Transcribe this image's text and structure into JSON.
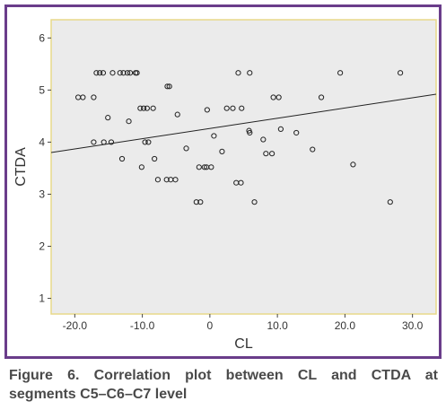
{
  "chart_data": {
    "type": "scatter",
    "xlabel": "CL",
    "ylabel": "CTDA",
    "xlim": [
      -23.5,
      33.5
    ],
    "ylim": [
      0.7,
      6.35
    ],
    "xticks": [
      -20.0,
      -10.0,
      0.0,
      10.0,
      20.0,
      30.0
    ],
    "xtick_labels": [
      "-20.0",
      "-10.0",
      "0",
      "10.0",
      "20.0",
      "30.0"
    ],
    "yticks": [
      1,
      2,
      3,
      4,
      5,
      6
    ],
    "ytick_labels": [
      "1",
      "2",
      "3",
      "4",
      "5",
      "6"
    ],
    "grid": false,
    "background": "#ebebeb",
    "border_color": "#e8d98a",
    "fit_line": {
      "x": [
        -23.5,
        33.5
      ],
      "y": [
        3.8,
        4.92
      ]
    },
    "points": [
      {
        "x": -19.5,
        "y": 4.86
      },
      {
        "x": -18.8,
        "y": 4.86
      },
      {
        "x": -17.2,
        "y": 4.86
      },
      {
        "x": -16.8,
        "y": 5.33
      },
      {
        "x": -16.3,
        "y": 5.33
      },
      {
        "x": -15.8,
        "y": 5.33
      },
      {
        "x": -14.4,
        "y": 5.33
      },
      {
        "x": -13.3,
        "y": 5.33
      },
      {
        "x": -12.8,
        "y": 5.33
      },
      {
        "x": -12.2,
        "y": 5.33
      },
      {
        "x": -11.8,
        "y": 5.33
      },
      {
        "x": -11.0,
        "y": 5.33
      },
      {
        "x": -10.8,
        "y": 5.33
      },
      {
        "x": -6.3,
        "y": 5.07
      },
      {
        "x": -6.0,
        "y": 5.07
      },
      {
        "x": -15.1,
        "y": 4.47
      },
      {
        "x": -12.0,
        "y": 4.4
      },
      {
        "x": -10.3,
        "y": 4.65
      },
      {
        "x": -9.8,
        "y": 4.65
      },
      {
        "x": -9.3,
        "y": 4.65
      },
      {
        "x": -8.4,
        "y": 4.65
      },
      {
        "x": -4.8,
        "y": 4.53
      },
      {
        "x": -0.4,
        "y": 4.62
      },
      {
        "x": 2.5,
        "y": 4.65
      },
      {
        "x": 3.4,
        "y": 4.65
      },
      {
        "x": 4.7,
        "y": 4.65
      },
      {
        "x": 4.2,
        "y": 5.33
      },
      {
        "x": 5.9,
        "y": 5.33
      },
      {
        "x": 9.4,
        "y": 4.86
      },
      {
        "x": 10.2,
        "y": 4.86
      },
      {
        "x": 16.5,
        "y": 4.86
      },
      {
        "x": 19.3,
        "y": 5.33
      },
      {
        "x": 28.2,
        "y": 5.33
      },
      {
        "x": -17.2,
        "y": 4.0
      },
      {
        "x": -15.7,
        "y": 4.0
      },
      {
        "x": -14.6,
        "y": 4.0
      },
      {
        "x": -13.0,
        "y": 3.68
      },
      {
        "x": -10.1,
        "y": 3.52
      },
      {
        "x": -9.6,
        "y": 4.0
      },
      {
        "x": -9.1,
        "y": 4.0
      },
      {
        "x": -8.2,
        "y": 3.68
      },
      {
        "x": -7.7,
        "y": 3.28
      },
      {
        "x": -6.4,
        "y": 3.28
      },
      {
        "x": -5.8,
        "y": 3.28
      },
      {
        "x": -5.1,
        "y": 3.28
      },
      {
        "x": -3.5,
        "y": 3.88
      },
      {
        "x": -2.0,
        "y": 2.85
      },
      {
        "x": -1.6,
        "y": 3.52
      },
      {
        "x": -1.4,
        "y": 2.85
      },
      {
        "x": -0.8,
        "y": 3.52
      },
      {
        "x": -0.5,
        "y": 3.52
      },
      {
        "x": 0.2,
        "y": 3.52
      },
      {
        "x": 0.6,
        "y": 4.12
      },
      {
        "x": 1.8,
        "y": 3.82
      },
      {
        "x": 3.9,
        "y": 3.22
      },
      {
        "x": 4.6,
        "y": 3.22
      },
      {
        "x": 5.8,
        "y": 4.22
      },
      {
        "x": 5.9,
        "y": 4.18
      },
      {
        "x": 6.6,
        "y": 2.85
      },
      {
        "x": 7.9,
        "y": 4.05
      },
      {
        "x": 8.3,
        "y": 3.78
      },
      {
        "x": 9.2,
        "y": 3.78
      },
      {
        "x": 10.5,
        "y": 4.25
      },
      {
        "x": 12.8,
        "y": 4.18
      },
      {
        "x": 15.2,
        "y": 3.86
      },
      {
        "x": 21.2,
        "y": 3.57
      },
      {
        "x": 26.7,
        "y": 2.85
      }
    ]
  },
  "caption": {
    "line1": "Figure 6. Correlation plot between CL and CTDA at",
    "line2": "segments C5–C6–C7 level"
  }
}
